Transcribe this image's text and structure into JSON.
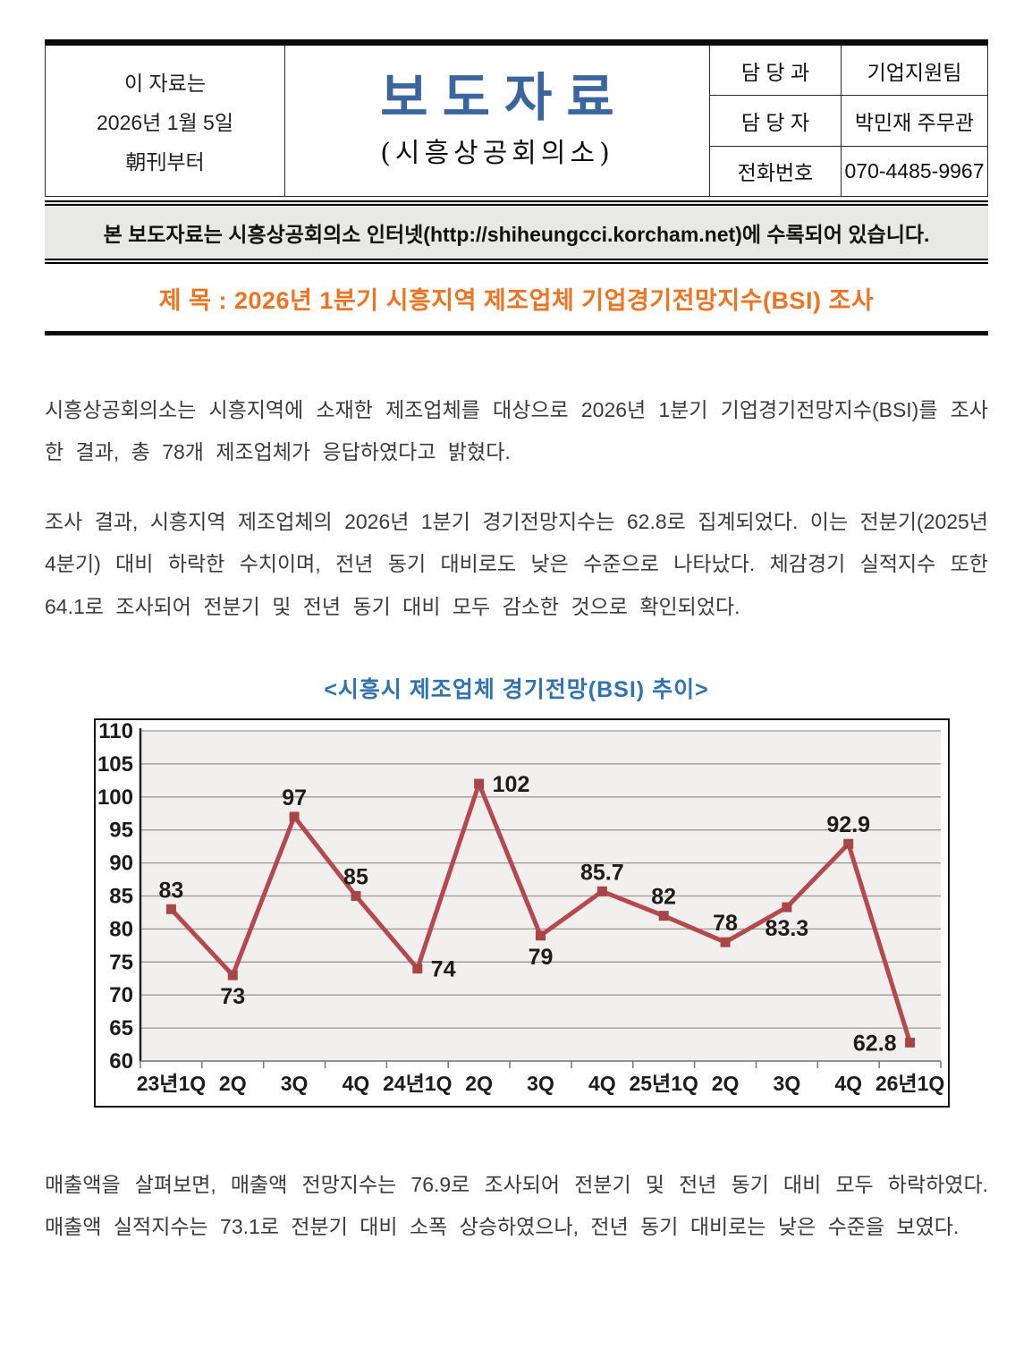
{
  "colors": {
    "masthead_blue": "#3a659e",
    "subject_orange": "#ee7421",
    "chart_title_blue": "#2e74b5",
    "notice_bar_bg": "#e8e8e6",
    "line_red": "#b5494c"
  },
  "page": {
    "header": {
      "date_note_lines": [
        "이 자료는",
        "2026년 1월 5일",
        "朝刊부터"
      ],
      "masthead_title": "보도자료",
      "masthead_subtitle": "(시흥상공회의소)",
      "contact_rows": [
        {
          "label": "담 당 과",
          "value": "기업지원팀"
        },
        {
          "label": "담 당 자",
          "value": "박민재 주무관"
        },
        {
          "label": "전화번호",
          "value": "070-4485-9967"
        }
      ]
    },
    "notice_bar": "본 보도자료는 시흥상공회의소 인터넷(http://shiheungcci.korcham.net)에 수록되어 있습니다.",
    "subject_line": "제 목 : 2026년 1분기 시흥지역 제조업체 기업경기전망지수(BSI) 조사",
    "paragraphs": [
      "시흥상공회의소는 시흥지역에 소재한 제조업체를 대상으로 2026년 1분기 기업경기전망지수(BSI)를 조사한 결과, 총 78개 제조업체가 응답하였다고 밝혔다.",
      "조사 결과, 시흥지역 제조업체의 2026년 1분기 경기전망지수는 62.8로 집계되었다. 이는 전분기(2025년 4분기) 대비 하락한 수치이며, 전년 동기 대비로도 낮은 수준으로 나타났다. 체감경기 실적지수 또한 64.1로 조사되어 전분기 및 전년 동기 대비 모두 감소한 것으로 확인되었다.",
      "매출액을 살펴보면, 매출액 전망지수는 76.9로 조사되어 전분기 및 전년 동기 대비 모두 하락하였다. 매출액 실적지수는 73.1로 전분기 대비 소폭 상승하였으나, 전년 동기 대비로는 낮은 수준을 보였다."
    ],
    "chart_caption": "<시흥시 제조업체 경기전망(BSI) 추이>"
  },
  "chart_data": {
    "type": "line",
    "title": "<시흥시 제조업체 경기전망(BSI) 추이>",
    "categories": [
      "23년1Q",
      "2Q",
      "3Q",
      "4Q",
      "24년1Q",
      "2Q",
      "3Q",
      "4Q",
      "25년1Q",
      "2Q",
      "3Q",
      "4Q",
      "26년1Q"
    ],
    "values": [
      83,
      73,
      97,
      85,
      74,
      102,
      79,
      85.7,
      82,
      78,
      83.3,
      92.9,
      62.8
    ],
    "point_labels": [
      "83",
      "73",
      "97",
      "85",
      "74",
      "102",
      "79",
      "85.7",
      "82",
      "78",
      "83.3",
      "92.9",
      "62.8"
    ],
    "label_positions": [
      "above",
      "below",
      "above",
      "above",
      "right",
      "right",
      "below",
      "above",
      "above",
      "above",
      "below",
      "above",
      "left"
    ],
    "xlabel": "",
    "ylabel": "",
    "ylim": [
      60,
      110
    ],
    "ytick_step": 5,
    "grid": true,
    "legend": "none",
    "line_color": "#b5494c",
    "marker_color": "#a84547",
    "plot_bg": "#f1f0ee",
    "grid_color": "#999999",
    "axis_color": "#222222",
    "label_color": "#1c1c1c"
  }
}
